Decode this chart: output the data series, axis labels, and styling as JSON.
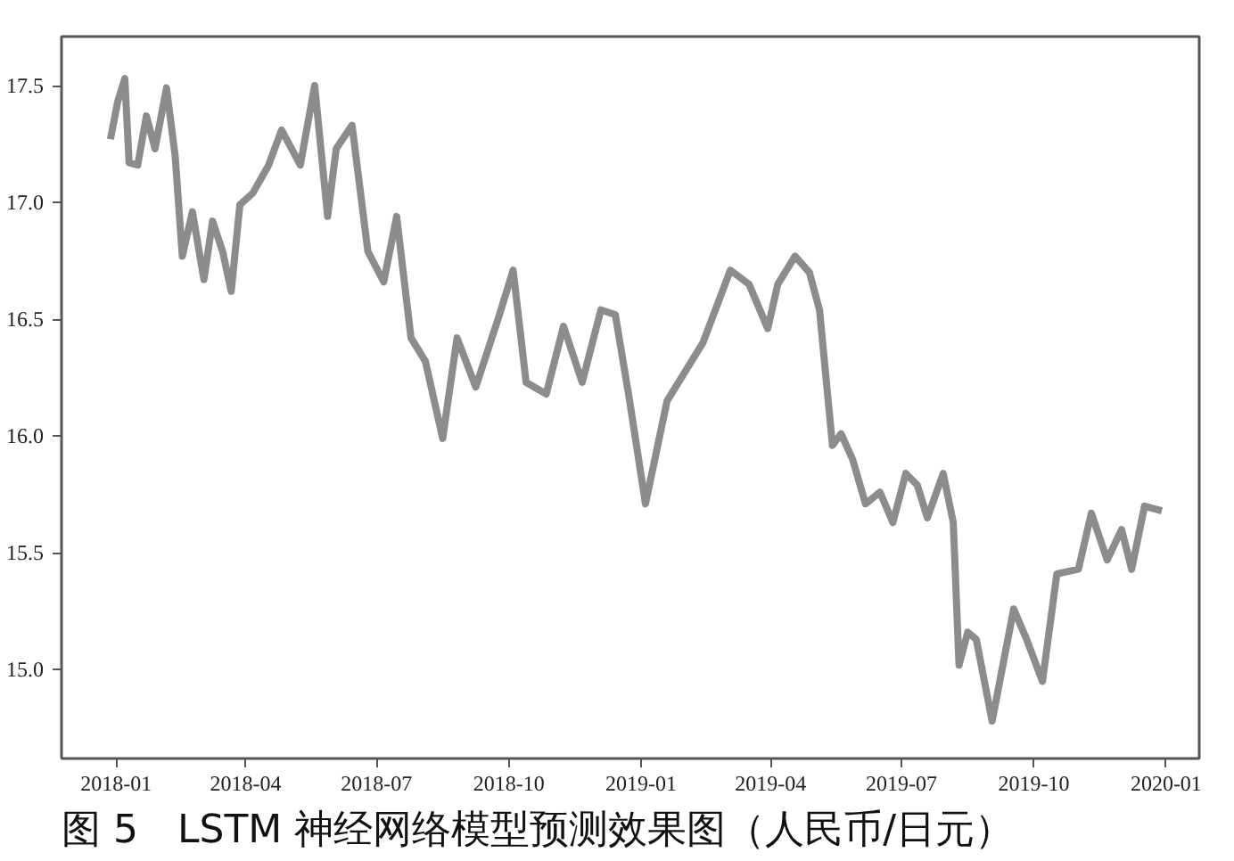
{
  "chart_data": {
    "type": "line",
    "title": "图 5　LSTM 神经网络模型预测效果图（人民币/日元）",
    "x": [
      "2017-12-28",
      "2018-01-02",
      "2018-01-07",
      "2018-01-10",
      "2018-01-16",
      "2018-01-22",
      "2018-01-28",
      "2018-02-05",
      "2018-02-11",
      "2018-02-16",
      "2018-02-23",
      "2018-03-03",
      "2018-03-09",
      "2018-03-16",
      "2018-03-22",
      "2018-03-28",
      "2018-04-06",
      "2018-04-17",
      "2018-04-26",
      "2018-05-09",
      "2018-05-19",
      "2018-05-28",
      "2018-06-03",
      "2018-06-14",
      "2018-06-25",
      "2018-07-06",
      "2018-07-15",
      "2018-07-25",
      "2018-08-04",
      "2018-08-16",
      "2018-08-26",
      "2018-09-08",
      "2018-09-24",
      "2018-10-04",
      "2018-10-13",
      "2018-10-27",
      "2018-11-08",
      "2018-11-21",
      "2018-12-04",
      "2018-12-14",
      "2018-12-24",
      "2019-01-04",
      "2019-01-19",
      "2019-02-13",
      "2019-03-04",
      "2019-03-17",
      "2019-03-30",
      "2019-04-06",
      "2019-04-18",
      "2019-04-28",
      "2019-05-05",
      "2019-05-14",
      "2019-05-20",
      "2019-05-28",
      "2019-06-06",
      "2019-06-16",
      "2019-06-25",
      "2019-07-04",
      "2019-07-12",
      "2019-07-19",
      "2019-07-30",
      "2019-08-06",
      "2019-08-10",
      "2019-08-16",
      "2019-08-22",
      "2019-09-02",
      "2019-09-17",
      "2019-09-26",
      "2019-10-07",
      "2019-10-17",
      "2019-11-01",
      "2019-11-10",
      "2019-11-21",
      "2019-12-01",
      "2019-12-08",
      "2019-12-17",
      "2019-12-29"
    ],
    "series": [
      {
        "color": "#8c8c8c",
        "values": [
          17.27,
          17.43,
          17.53,
          17.17,
          17.16,
          17.37,
          17.23,
          17.49,
          17.2,
          16.77,
          16.96,
          16.67,
          16.92,
          16.79,
          16.62,
          16.99,
          17.04,
          17.16,
          17.31,
          17.16,
          17.5,
          16.94,
          17.23,
          17.33,
          16.79,
          16.66,
          16.94,
          16.42,
          16.32,
          15.99,
          16.42,
          16.21,
          16.51,
          16.71,
          16.23,
          16.18,
          16.47,
          16.23,
          16.54,
          16.52,
          16.15,
          15.71,
          16.15,
          16.4,
          16.71,
          16.65,
          16.46,
          16.65,
          16.77,
          16.7,
          16.54,
          15.96,
          16.01,
          15.9,
          15.71,
          15.76,
          15.63,
          15.84,
          15.79,
          15.65,
          15.84,
          15.63,
          15.02,
          15.16,
          15.13,
          14.78,
          15.26,
          15.13,
          14.95,
          15.41,
          15.43,
          15.67,
          15.47,
          15.6,
          15.43,
          15.7,
          15.68
        ]
      }
    ],
    "xlim": [
      "2017-11-24",
      "2020-01-24"
    ],
    "xticks": [
      "2018-01",
      "2018-04",
      "2018-07",
      "2018-10",
      "2019-01",
      "2019-04",
      "2019-07",
      "2019-10",
      "2020-01"
    ],
    "ylim": [
      14.62,
      17.71
    ],
    "yticks": [
      {
        "value": 15,
        "label": "15.0"
      },
      15.5,
      {
        "value": 16,
        "label": "16.0"
      },
      16.5,
      {
        "value": 17,
        "label": "17.0"
      },
      17.5
    ],
    "grid": false,
    "marker": "none",
    "line_style": "solid"
  }
}
